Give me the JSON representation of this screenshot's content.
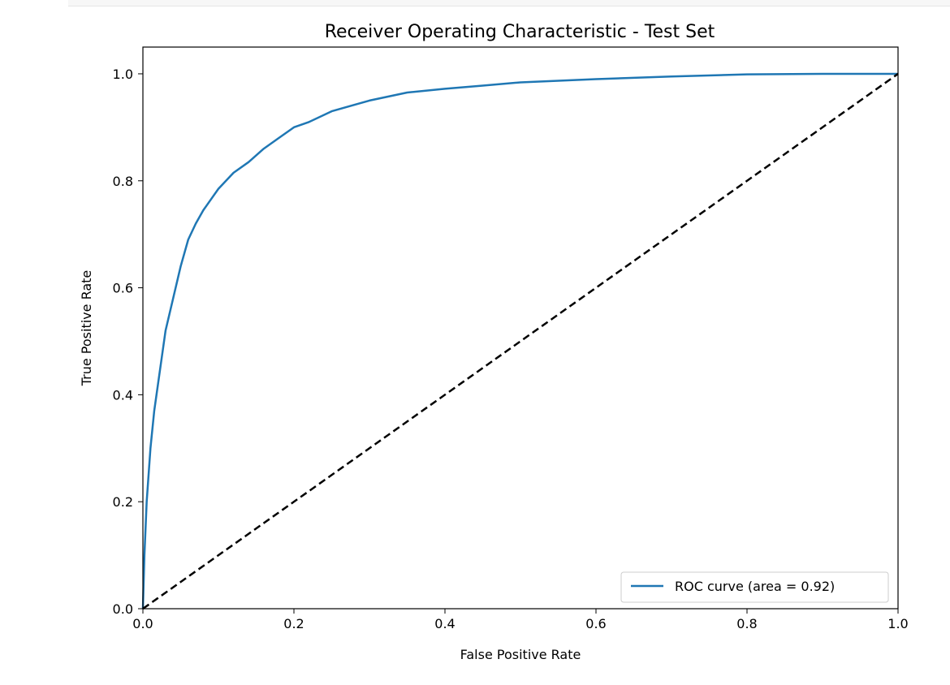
{
  "chart_data": {
    "type": "line",
    "title": "Receiver Operating Characteristic - Test Set",
    "xlabel": "False Positive Rate",
    "ylabel": "True Positive Rate",
    "xlim": [
      0.0,
      1.0
    ],
    "ylim": [
      0.0,
      1.05
    ],
    "x_ticks": [
      "0.0",
      "0.2",
      "0.4",
      "0.6",
      "0.8",
      "1.0"
    ],
    "y_ticks": [
      "0.0",
      "0.2",
      "0.4",
      "0.6",
      "0.8",
      "1.0"
    ],
    "grid": false,
    "legend_position": "lower-right",
    "series": [
      {
        "name": "ROC curve (area = 0.92)",
        "color": "#1f77b4",
        "style": "solid",
        "x": [
          0.0,
          0.002,
          0.005,
          0.01,
          0.015,
          0.02,
          0.025,
          0.03,
          0.04,
          0.05,
          0.06,
          0.07,
          0.08,
          0.09,
          0.1,
          0.11,
          0.12,
          0.14,
          0.16,
          0.18,
          0.2,
          0.22,
          0.25,
          0.3,
          0.35,
          0.4,
          0.45,
          0.5,
          0.6,
          0.7,
          0.8,
          0.9,
          1.0
        ],
        "y": [
          0.0,
          0.1,
          0.2,
          0.3,
          0.37,
          0.42,
          0.47,
          0.52,
          0.58,
          0.64,
          0.69,
          0.72,
          0.745,
          0.765,
          0.785,
          0.8,
          0.815,
          0.835,
          0.86,
          0.88,
          0.9,
          0.91,
          0.93,
          0.95,
          0.965,
          0.972,
          0.978,
          0.984,
          0.99,
          0.995,
          0.999,
          1.0,
          1.0
        ]
      },
      {
        "name": "",
        "color": "#000000",
        "style": "dashed",
        "x": [
          0.0,
          1.0
        ],
        "y": [
          0.0,
          1.0
        ]
      }
    ]
  }
}
